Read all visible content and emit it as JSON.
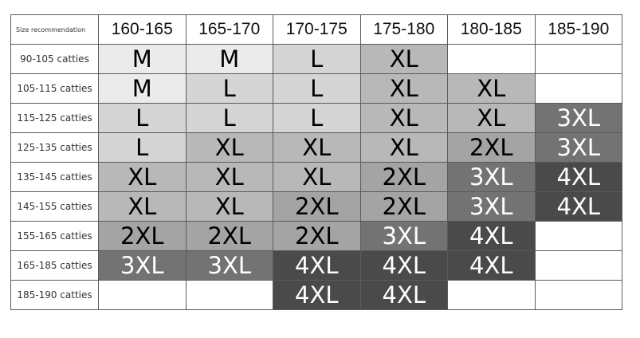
{
  "corner_label": "Size recommendation",
  "columns": [
    "160-165",
    "165-170",
    "170-175",
    "175-180",
    "180-185",
    "185-190"
  ],
  "rows": [
    {
      "label": "90-105 catties",
      "sizes": [
        "M",
        "M",
        "L",
        "XL",
        "",
        ""
      ]
    },
    {
      "label": "105-115 catties",
      "sizes": [
        "M",
        "L",
        "L",
        "XL",
        "XL",
        ""
      ]
    },
    {
      "label": "115-125 catties",
      "sizes": [
        "L",
        "L",
        "L",
        "XL",
        "XL",
        "3XL"
      ]
    },
    {
      "label": "125-135 catties",
      "sizes": [
        "L",
        "XL",
        "XL",
        "XL",
        "2XL",
        "3XL"
      ]
    },
    {
      "label": "135-145 catties",
      "sizes": [
        "XL",
        "XL",
        "XL",
        "2XL",
        "3XL",
        "4XL"
      ]
    },
    {
      "label": "145-155 catties",
      "sizes": [
        "XL",
        "XL",
        "2XL",
        "2XL",
        "3XL",
        "4XL"
      ]
    },
    {
      "label": "155-165 catties",
      "sizes": [
        "2XL",
        "2XL",
        "2XL",
        "3XL",
        "4XL",
        ""
      ]
    },
    {
      "label": "165-185 catties",
      "sizes": [
        "3XL",
        "3XL",
        "4XL",
        "4XL",
        "4XL",
        ""
      ]
    },
    {
      "label": "185-190 catties",
      "sizes": [
        "",
        "",
        "4XL",
        "4XL",
        "",
        ""
      ]
    }
  ],
  "size_colors": {
    "M": {
      "bg": "#ebebeb",
      "fg": "#000000"
    },
    "L": {
      "bg": "#d5d5d5",
      "fg": "#000000"
    },
    "XL": {
      "bg": "#b8b8b8",
      "fg": "#000000"
    },
    "2XL": {
      "bg": "#a4a4a4",
      "fg": "#000000"
    },
    "3XL": {
      "bg": "#737373",
      "fg": "#ffffff"
    },
    "4XL": {
      "bg": "#4a4a4a",
      "fg": "#ffffff"
    },
    "": {
      "bg": "#ffffff",
      "fg": "#000000"
    }
  }
}
